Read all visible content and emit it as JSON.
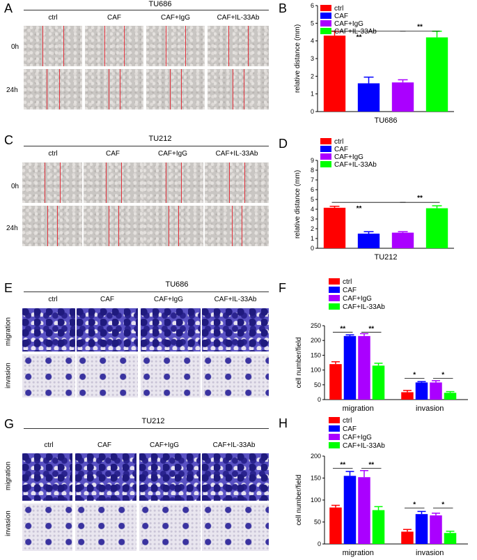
{
  "panels": {
    "A": {
      "letter": "A",
      "title": "TU686",
      "cols": [
        "ctrl",
        "CAF",
        "CAF+IgG",
        "CAF+IL-33Ab"
      ],
      "rows": [
        "0h",
        "24h"
      ]
    },
    "C": {
      "letter": "C",
      "title": "TU212",
      "cols": [
        "ctrl",
        "CAF",
        "CAF+IgG",
        "CAF+IL-33Ab"
      ],
      "rows": [
        "0h",
        "24h"
      ]
    },
    "E": {
      "letter": "E",
      "title": "TU686",
      "cols": [
        "ctrl",
        "CAF",
        "CAF+IgG",
        "CAF+IL-33Ab"
      ],
      "rows": [
        "migration",
        "invasion"
      ]
    },
    "G": {
      "letter": "G",
      "title": "TU212",
      "cols": [
        "ctrl",
        "CAF",
        "CAF+IgG",
        "CAF+IL-33Ab"
      ],
      "rows": [
        "migration",
        "invasion"
      ]
    }
  },
  "colors": {
    "ctrl": "#ff0000",
    "CAF": "#0000ff",
    "CAF+IgG": "#aa00ff",
    "CAF+IL-33Ab": "#00ff00"
  },
  "chart_data": [
    {
      "id": "B",
      "letter": "B",
      "type": "bar",
      "title": "",
      "xlabel": "TU686",
      "ylabel": "relative distance (mm)",
      "categories": [
        "ctrl",
        "CAF",
        "CAF+IgG",
        "CAF+IL-33Ab"
      ],
      "values": [
        4.3,
        1.6,
        1.65,
        4.2
      ],
      "errors": [
        0.25,
        0.35,
        0.15,
        0.35
      ],
      "ylim": [
        0,
        6
      ],
      "yticks": [
        0,
        1,
        2,
        3,
        4,
        5,
        6
      ],
      "legend": [
        "ctrl",
        "CAF",
        "CAF+IgG",
        "CAF+IL-33Ab"
      ],
      "significance": [
        {
          "from": 0,
          "to": 2,
          "label": "**",
          "at": 4.55
        },
        {
          "from": 2,
          "to": 3,
          "label": "**",
          "at": 4.55
        }
      ]
    },
    {
      "id": "D",
      "letter": "D",
      "type": "bar",
      "title": "",
      "xlabel": "TU212",
      "ylabel": "relative distance (mm)",
      "categories": [
        "ctrl",
        "CAF",
        "CAF+IgG",
        "CAF+IL-33Ab"
      ],
      "values": [
        4.15,
        1.5,
        1.6,
        4.1
      ],
      "errors": [
        0.15,
        0.2,
        0.1,
        0.25
      ],
      "ylim": [
        0,
        9
      ],
      "yticks": [
        0,
        1,
        2,
        3,
        4,
        5,
        6,
        7,
        8,
        9
      ],
      "legend": [
        "ctrl",
        "CAF",
        "CAF+IgG",
        "CAF+IL-33Ab"
      ],
      "significance": [
        {
          "from": 0,
          "to": 2,
          "label": "**",
          "at": 4.7
        },
        {
          "from": 2,
          "to": 3,
          "label": "**",
          "at": 4.7
        }
      ]
    },
    {
      "id": "F",
      "letter": "F",
      "type": "bar",
      "title": "",
      "xlabel": "",
      "ylabel": "cell number/field",
      "groups": [
        "migration",
        "invasion"
      ],
      "series": [
        {
          "name": "ctrl",
          "values": [
            120,
            25
          ],
          "errors": [
            8,
            6
          ]
        },
        {
          "name": "CAF",
          "values": [
            215,
            58
          ],
          "errors": [
            4,
            3
          ]
        },
        {
          "name": "CAF+IgG",
          "values": [
            215,
            58
          ],
          "errors": [
            8,
            6
          ]
        },
        {
          "name": "CAF+IL-33Ab",
          "values": [
            115,
            23
          ],
          "errors": [
            8,
            4
          ]
        }
      ],
      "ylim": [
        0,
        250
      ],
      "yticks": [
        0,
        50,
        100,
        150,
        200,
        250
      ],
      "significance": [
        {
          "group": 0,
          "from": 0,
          "to": 1,
          "label": "**",
          "at": 228
        },
        {
          "group": 0,
          "from": 2,
          "to": 3,
          "label": "**",
          "at": 228
        },
        {
          "group": 1,
          "from": 0,
          "to": 1,
          "label": "*",
          "at": 72
        },
        {
          "group": 1,
          "from": 2,
          "to": 3,
          "label": "*",
          "at": 72
        }
      ]
    },
    {
      "id": "H",
      "letter": "H",
      "type": "bar",
      "title": "",
      "xlabel": "",
      "ylabel": "cell number/field",
      "groups": [
        "migration",
        "invasion"
      ],
      "series": [
        {
          "name": "ctrl",
          "values": [
            83,
            28
          ],
          "errors": [
            5,
            5
          ]
        },
        {
          "name": "CAF",
          "values": [
            155,
            68
          ],
          "errors": [
            10,
            6
          ]
        },
        {
          "name": "CAF+IgG",
          "values": [
            152,
            65
          ],
          "errors": [
            15,
            5
          ]
        },
        {
          "name": "CAF+IL-33Ab",
          "values": [
            77,
            25
          ],
          "errors": [
            8,
            4
          ]
        }
      ],
      "ylim": [
        0,
        200
      ],
      "yticks": [
        0,
        50,
        100,
        150,
        200
      ],
      "significance": [
        {
          "group": 0,
          "from": 0,
          "to": 1,
          "label": "**",
          "at": 172
        },
        {
          "group": 0,
          "from": 2,
          "to": 3,
          "label": "**",
          "at": 172
        },
        {
          "group": 1,
          "from": 0,
          "to": 1,
          "label": "*",
          "at": 82
        },
        {
          "group": 1,
          "from": 2,
          "to": 3,
          "label": "*",
          "at": 82
        }
      ]
    }
  ]
}
